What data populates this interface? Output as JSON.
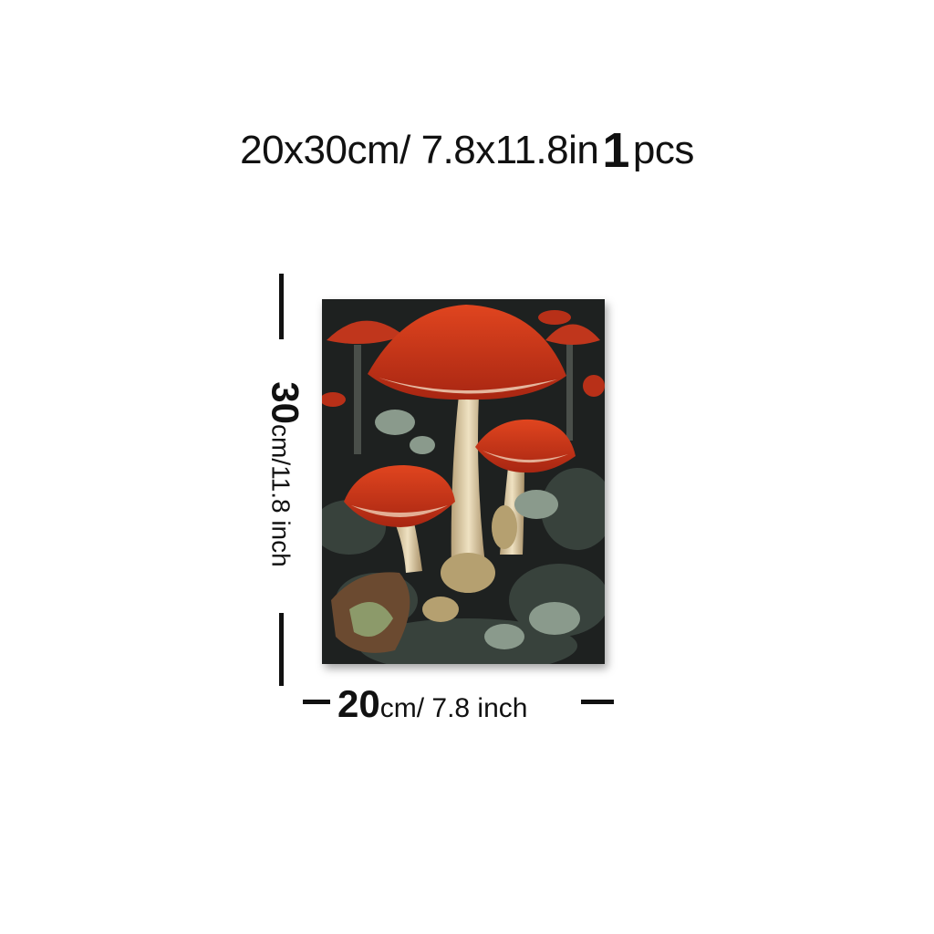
{
  "title": {
    "size": "20x30cm/ 7.8x11.8in",
    "quantity": "1",
    "unit": "pcs"
  },
  "height_label": {
    "value": "30",
    "unit": "cm/11.8 inch"
  },
  "width_label": {
    "value": "20",
    "unit": "cm/ 7.8 inch"
  },
  "colors": {
    "background": "#ffffff",
    "mushroom_cap": "#c8341a",
    "canvas_dark": "#1e2120",
    "stem": "#e2d3b0",
    "foliage": "#7f8f83"
  }
}
